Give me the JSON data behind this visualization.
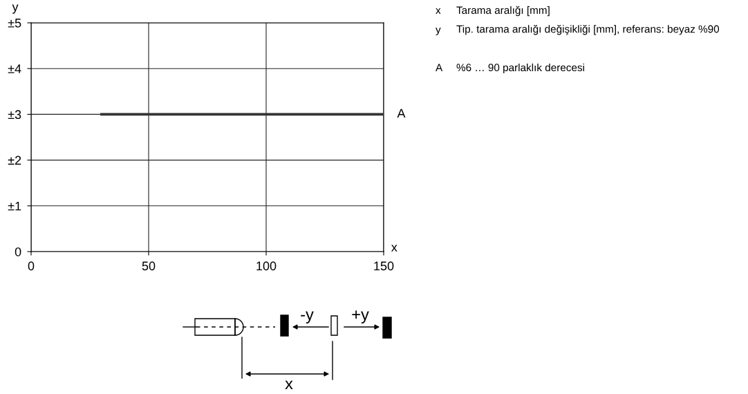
{
  "chart_data": {
    "type": "line",
    "xlabel": "x",
    "ylabel": "y",
    "x": [
      30,
      150
    ],
    "series": [
      {
        "name": "A",
        "color": "#333333",
        "values": [
          3,
          3
        ]
      }
    ],
    "xlim": [
      0,
      150
    ],
    "xticks": [
      0,
      50,
      100,
      150
    ],
    "ylim": [
      0,
      5
    ],
    "yticks": [
      {
        "value": 0,
        "label": "0"
      },
      {
        "value": 1,
        "label": "±1"
      },
      {
        "value": 2,
        "label": "±2"
      },
      {
        "value": 3,
        "label": "±3"
      },
      {
        "value": 4,
        "label": "±4"
      },
      {
        "value": 5,
        "label": "±5"
      }
    ],
    "grid": true,
    "marker": "none",
    "line_style": "solid",
    "annotations": [
      "x",
      "Tarama aralığı [mm]",
      "y",
      "Tip. tarama aralığı değişikliği [mm], referans: beyaz %90",
      "A",
      "%6 … 90 parlaklık derecesi",
      "-y",
      "+y",
      "x"
    ]
  }
}
